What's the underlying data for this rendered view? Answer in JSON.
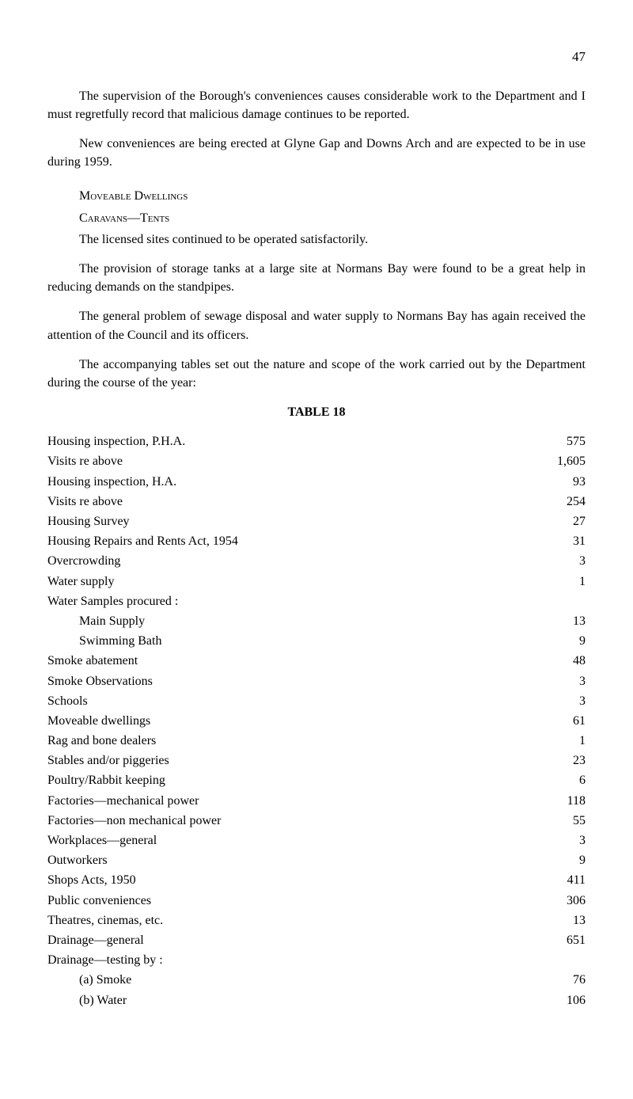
{
  "page_number": "47",
  "paragraphs": {
    "p1": "The supervision of the Borough's conveniences causes considerable work to the Department and I must regretfully record that malicious damage continues to be reported.",
    "p2": "New conveniences are being erected at Glyne Gap and Downs Arch and are expected to be in use during 1959.",
    "heading1": "Moveable Dwellings",
    "heading2": "Caravans—Tents",
    "p3": "The licensed sites continued to be operated satisfactorily.",
    "p4": "The provision of storage tanks at a large site at Normans Bay were found to be a great help in reducing demands on the standpipes.",
    "p5": "The general problem of sewage disposal and water supply to Normans Bay has again received the attention of the Council and its officers.",
    "p6": "The accompanying tables set out the nature and scope of the work carried out by the Department during the course of the year:"
  },
  "table": {
    "title": "TABLE 18",
    "rows": [
      {
        "label": "Housing inspection, P.H.A.",
        "value": "575",
        "indent": 0
      },
      {
        "label": "Visits re above",
        "value": "1,605",
        "indent": 0
      },
      {
        "label": "Housing inspection, H.A.",
        "value": "93",
        "indent": 0
      },
      {
        "label": "Visits re above",
        "value": "254",
        "indent": 0
      },
      {
        "label": "Housing Survey",
        "value": "27",
        "indent": 0
      },
      {
        "label": "Housing Repairs and Rents Act, 1954",
        "value": "31",
        "indent": 0
      },
      {
        "label": "Overcrowding",
        "value": "3",
        "indent": 0
      },
      {
        "label": "Water supply",
        "value": "1",
        "indent": 0
      },
      {
        "label": "Water Samples procured :",
        "value": "",
        "indent": 0
      },
      {
        "label": "Main Supply",
        "value": "13",
        "indent": 1
      },
      {
        "label": "Swimming Bath",
        "value": "9",
        "indent": 1
      },
      {
        "label": "Smoke abatement",
        "value": "48",
        "indent": 0
      },
      {
        "label": "Smoke Observations",
        "value": "3",
        "indent": 0
      },
      {
        "label": "Schools",
        "value": "3",
        "indent": 0
      },
      {
        "label": "Moveable dwellings",
        "value": "61",
        "indent": 0
      },
      {
        "label": "Rag and bone dealers",
        "value": "1",
        "indent": 0
      },
      {
        "label": "Stables and/or piggeries",
        "value": "23",
        "indent": 0
      },
      {
        "label": "Poultry/Rabbit keeping",
        "value": "6",
        "indent": 0
      },
      {
        "label": "Factories—mechanical power",
        "value": "118",
        "indent": 0
      },
      {
        "label": "Factories—non mechanical power",
        "value": "55",
        "indent": 0
      },
      {
        "label": "Workplaces—general",
        "value": "3",
        "indent": 0
      },
      {
        "label": "Outworkers",
        "value": "9",
        "indent": 0
      },
      {
        "label": "Shops Acts, 1950",
        "value": "411",
        "indent": 0
      },
      {
        "label": "Public conveniences",
        "value": "306",
        "indent": 0
      },
      {
        "label": "Theatres, cinemas, etc.",
        "value": "13",
        "indent": 0
      },
      {
        "label": "Drainage—general",
        "value": "651",
        "indent": 0
      },
      {
        "label": "Drainage—testing by :",
        "value": "",
        "indent": 0
      },
      {
        "label": "(a) Smoke",
        "value": "76",
        "indent": 1
      },
      {
        "label": "(b) Water",
        "value": "106",
        "indent": 1
      }
    ]
  }
}
